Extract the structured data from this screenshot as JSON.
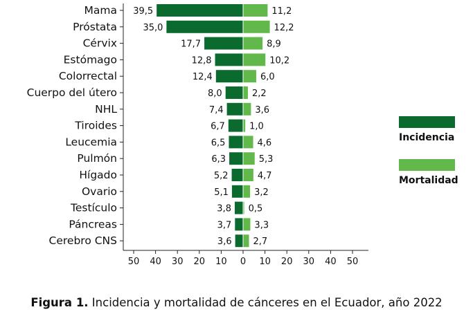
{
  "chart_data": {
    "type": "bar",
    "orientation": "horizontal-diverging",
    "categories": [
      "Mama",
      "Próstata",
      "Cérvix",
      "Estómago",
      "Colorrectal",
      "Cuerpo del útero",
      "NHL",
      "Tiroides",
      "Leucemia",
      "Pulmón",
      "Hígado",
      "Ovario",
      "Testículo",
      "Páncreas",
      "Cerebro CNS"
    ],
    "series": [
      {
        "name": "Incidencia",
        "color": "#0b6a2d",
        "side": "left",
        "values": [
          39.5,
          35.0,
          17.7,
          12.8,
          12.4,
          8.0,
          7.4,
          6.7,
          6.5,
          6.3,
          5.2,
          5.1,
          3.8,
          3.7,
          3.6
        ],
        "labels": [
          "39,5",
          "35,0",
          "17,7",
          "12,8",
          "12,4",
          "8,0",
          "7,4",
          "6,7",
          "6,5",
          "6,3",
          "5,2",
          "5,1",
          "3,8",
          "3,7",
          "3,6"
        ]
      },
      {
        "name": "Mortalidad",
        "color": "#62b84a",
        "side": "right",
        "values": [
          11.2,
          12.2,
          8.9,
          10.2,
          6.0,
          2.2,
          3.6,
          1.0,
          4.6,
          5.3,
          4.7,
          3.2,
          0.5,
          3.3,
          2.7
        ],
        "labels": [
          "11,2",
          "12,2",
          "8,9",
          "10,2",
          "6,0",
          "2,2",
          "3,6",
          "1,0",
          "4,6",
          "5,3",
          "4,7",
          "3,2",
          "0,5",
          "3,3",
          "2,7"
        ]
      }
    ],
    "x_ticks": [
      "50",
      "40",
      "30",
      "20",
      "10",
      "0",
      "10",
      "20",
      "30",
      "40",
      "50"
    ],
    "xlim": [
      -50,
      50
    ],
    "legend_position": "right"
  },
  "legend": [
    {
      "label": "Incidencia",
      "color": "#0b6a2d"
    },
    {
      "label": "Mortalidad",
      "color": "#62b84a"
    }
  ],
  "caption": {
    "prefix": "Figura 1.",
    "text": " Incidencia y mortalidad de cánceres en el Ecuador, año 2022"
  }
}
